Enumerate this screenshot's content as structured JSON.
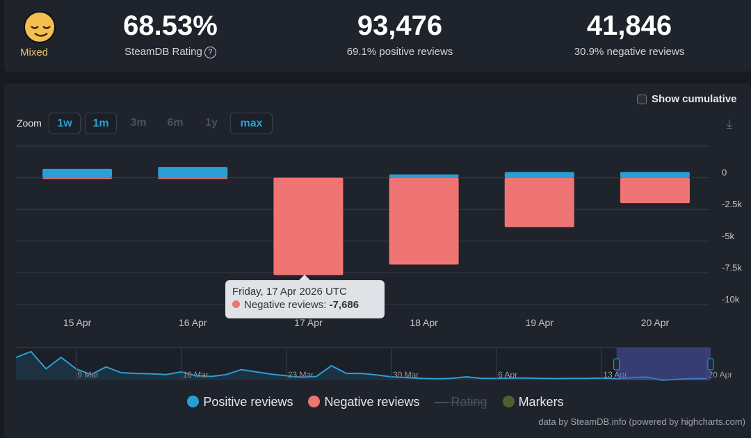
{
  "summary": {
    "rating_label": "Mixed",
    "rating_icon": "relieved-face-emoji",
    "score": "68.53%",
    "score_label": "SteamDB Rating",
    "help_icon": "?",
    "positive_count": "93,476",
    "positive_label": "69.1% positive reviews",
    "negative_count": "41,846",
    "negative_label": "30.9% negative reviews"
  },
  "controls": {
    "show_cumulative": "Show cumulative",
    "show_cumulative_checked": false,
    "zoom_label": "Zoom",
    "zoom_buttons": [
      {
        "label": "1w",
        "enabled": true
      },
      {
        "label": "1m",
        "enabled": true
      },
      {
        "label": "3m",
        "enabled": false
      },
      {
        "label": "6m",
        "enabled": false
      },
      {
        "label": "1y",
        "enabled": false
      },
      {
        "label": "max",
        "enabled": true
      }
    ],
    "download_icon": "download-icon"
  },
  "tooltip": {
    "date": "Friday, 17 Apr 2026 UTC",
    "series": "Negative reviews:",
    "value": "-7,686"
  },
  "legend": [
    {
      "label": "Positive reviews",
      "color": "#2a9fd6"
    },
    {
      "label": "Negative reviews",
      "color": "#ef7575"
    },
    {
      "label": "Rating",
      "color": "#4a505c",
      "hidden": true
    },
    {
      "label": "Markers",
      "color": "#4f5f2f"
    }
  ],
  "credit": "data by SteamDB.info (powered by highcharts.com)",
  "chart_data": {
    "type": "bar",
    "categories": [
      "15 Apr",
      "16 Apr",
      "17 Apr",
      "18 Apr",
      "19 Apr",
      "20 Apr"
    ],
    "series": [
      {
        "name": "Positive reviews",
        "color": "#2a9fd6",
        "values": [
          700,
          850,
          0,
          250,
          450,
          450
        ]
      },
      {
        "name": "Negative reviews",
        "color": "#ef7575",
        "values": [
          -100,
          -100,
          -7686,
          -6850,
          -3900,
          -2000
        ]
      }
    ],
    "ylim": [
      -10000,
      2500
    ],
    "yticks": [
      "0",
      "-2.5k",
      "-5k",
      "-7.5k",
      "-10k"
    ],
    "ytick_values": [
      0,
      -2500,
      -5000,
      -7500,
      -10000
    ],
    "grid": true,
    "navigator": {
      "start": "5 Mar",
      "labels": [
        "9 Mar",
        "16 Mar",
        "23 Mar",
        "30 Mar",
        "6 Apr",
        "13 Apr",
        "20 Apr"
      ],
      "positive_daily": [
        6000,
        7500,
        3000,
        6000,
        3000,
        1500,
        3500,
        2000,
        1800,
        1700,
        1500,
        2200,
        1200,
        1000,
        1500,
        2800,
        2200,
        1600,
        1200,
        800,
        1000,
        3800,
        1800,
        1800,
        1400,
        900,
        700,
        500,
        400,
        500,
        900,
        500,
        500,
        600,
        600,
        500,
        450,
        500,
        500,
        600,
        400,
        700,
        850,
        50,
        250,
        450,
        450
      ],
      "ymax": 8000,
      "selected_range": [
        "15 Apr",
        "20 Apr"
      ]
    }
  }
}
